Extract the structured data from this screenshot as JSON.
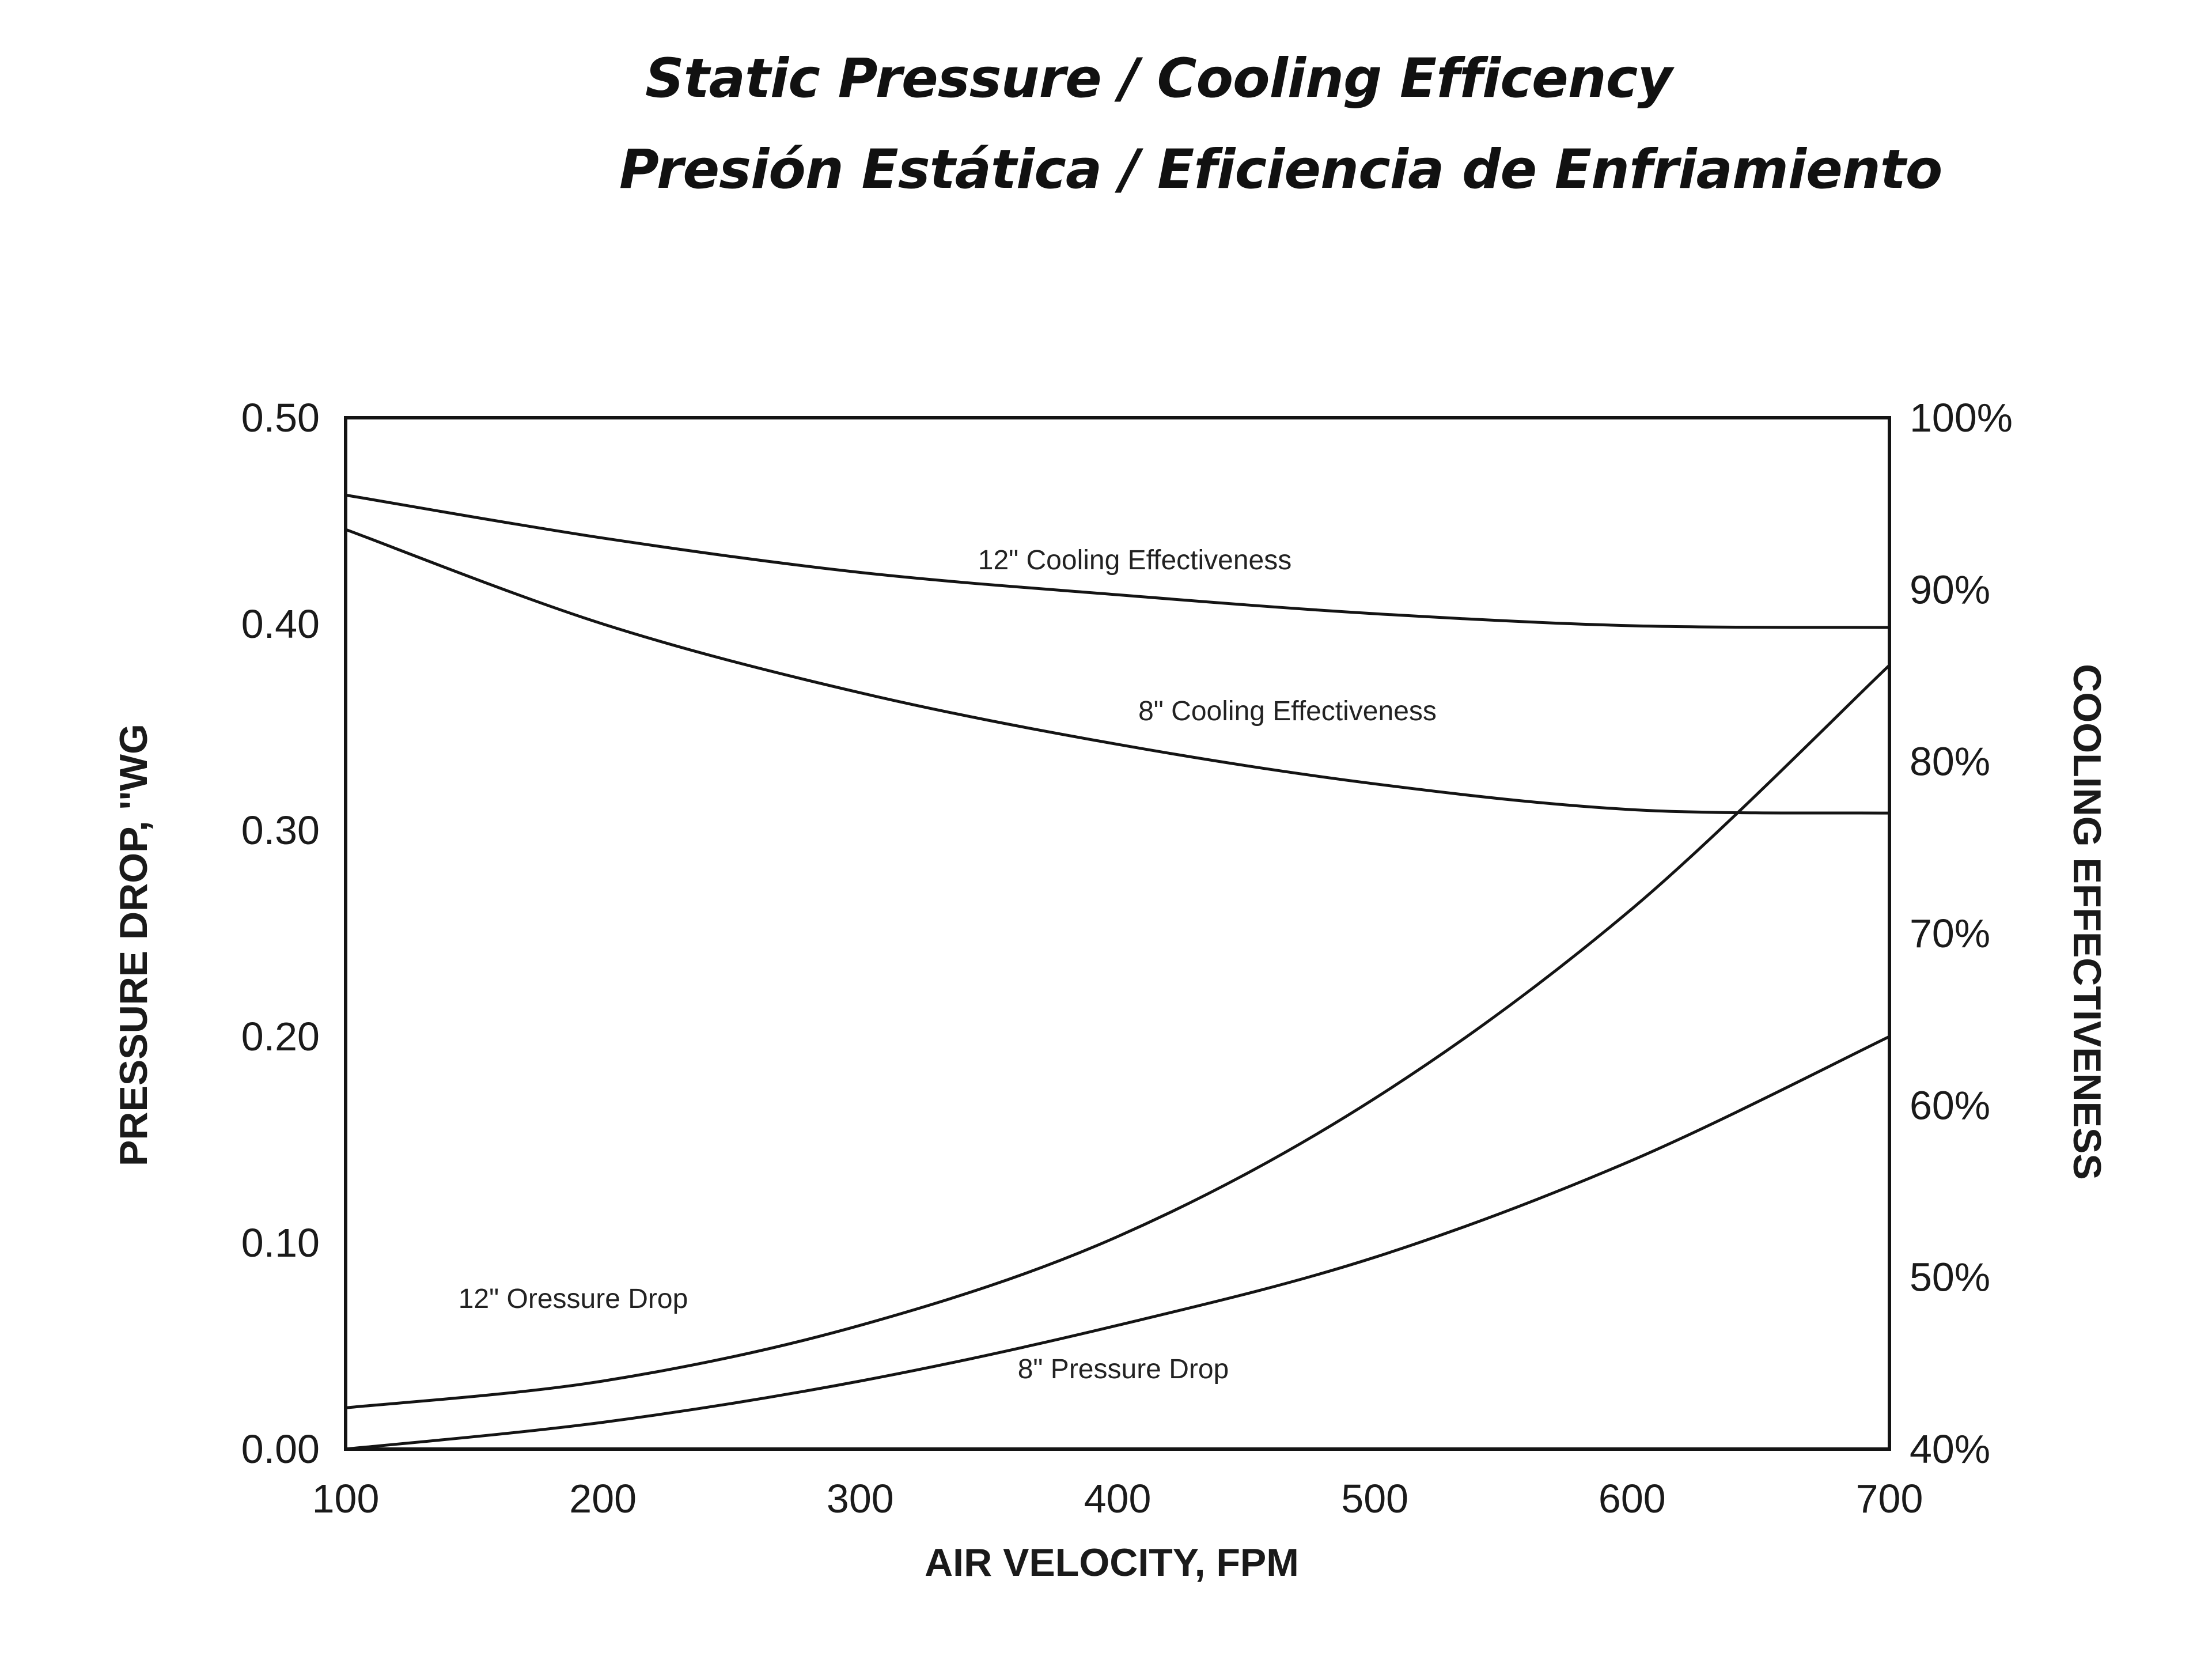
{
  "title_line_1": "Static Pressure / Cooling Efficency",
  "title_line_2": "Presión Estática / Eficiencia de Enfriamiento",
  "chart_data": {
    "type": "line",
    "xlabel": "AIR VELOCITY, FPM",
    "ylabel_left": "PRESSURE DROP, ''WG",
    "ylabel_right": "COOLING EFFECTIVENESS",
    "xlim": [
      100,
      700
    ],
    "ylim_left": [
      0.0,
      0.5
    ],
    "ylim_right": [
      40,
      100
    ],
    "x_ticks": [
      "100",
      "200",
      "300",
      "400",
      "500",
      "600",
      "700"
    ],
    "y_left_ticks": [
      "0.00",
      "0.10",
      "0.20",
      "0.30",
      "0.40",
      "0.50"
    ],
    "y_right_ticks": [
      "40%",
      "50%",
      "60%",
      "70%",
      "80%",
      "90%",
      "100%"
    ],
    "grid": false,
    "series": [
      {
        "name": "12\" Cooling Effectiveness",
        "axis": "right",
        "x": [
          100,
          200,
          300,
          400,
          500,
          600,
          700
        ],
        "y": [
          95.5,
          93.0,
          91.0,
          89.7,
          88.6,
          87.9,
          87.8
        ]
      },
      {
        "name": "8\" Cooling Effectiveness",
        "axis": "right",
        "x": [
          100,
          200,
          300,
          400,
          500,
          600,
          700
        ],
        "y": [
          93.5,
          88.0,
          84.0,
          81.0,
          78.7,
          77.2,
          77.0
        ]
      },
      {
        "name": "12\" Oressure Drop",
        "axis": "left",
        "x": [
          100,
          200,
          300,
          400,
          500,
          600,
          700
        ],
        "y": [
          0.02,
          0.033,
          0.06,
          0.103,
          0.17,
          0.262,
          0.38
        ]
      },
      {
        "name": "8\" Pressure Drop",
        "axis": "left",
        "x": [
          100,
          200,
          300,
          400,
          500,
          600,
          700
        ],
        "y": [
          0.0,
          0.013,
          0.033,
          0.06,
          0.093,
          0.14,
          0.2
        ]
      }
    ]
  }
}
